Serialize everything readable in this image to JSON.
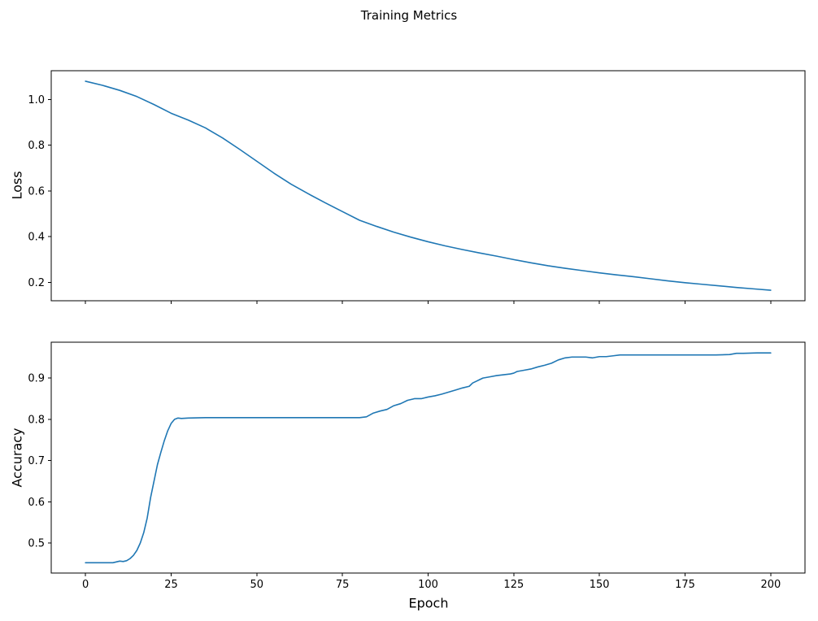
{
  "figure": {
    "title": "Training Metrics",
    "line_color": "#1f77b4",
    "background": "#ffffff",
    "text_color": "#000000"
  },
  "chart_data": [
    {
      "type": "line",
      "title": "",
      "xlabel": "",
      "ylabel": "Loss",
      "grid": false,
      "legend": "none",
      "xlim": [
        -10,
        210
      ],
      "ylim": [
        0.12,
        1.126
      ],
      "xticks": [
        0,
        25,
        50,
        75,
        100,
        125,
        150,
        175,
        200
      ],
      "xtick_labels": [],
      "yticks": [
        0.2,
        0.4,
        0.6,
        0.8,
        1.0
      ],
      "ytick_labels": [
        "0.2",
        "0.4",
        "0.6",
        "0.8",
        "1.0"
      ],
      "series": [
        {
          "name": "loss",
          "x": [
            0,
            5,
            10,
            15,
            20,
            25,
            30,
            35,
            40,
            45,
            50,
            55,
            60,
            65,
            70,
            75,
            80,
            85,
            90,
            95,
            100,
            105,
            110,
            115,
            120,
            125,
            130,
            135,
            140,
            145,
            150,
            155,
            160,
            165,
            170,
            175,
            180,
            185,
            190,
            195,
            200
          ],
          "y": [
            1.08,
            1.062,
            1.04,
            1.013,
            0.978,
            0.94,
            0.91,
            0.876,
            0.832,
            0.782,
            0.73,
            0.678,
            0.63,
            0.588,
            0.548,
            0.51,
            0.472,
            0.445,
            0.42,
            0.398,
            0.378,
            0.36,
            0.344,
            0.329,
            0.315,
            0.3,
            0.286,
            0.273,
            0.262,
            0.252,
            0.242,
            0.233,
            0.225,
            0.216,
            0.207,
            0.199,
            0.192,
            0.185,
            0.178,
            0.172,
            0.166
          ]
        }
      ]
    },
    {
      "type": "line",
      "title": "",
      "xlabel": "Epoch",
      "ylabel": "Accuracy",
      "grid": false,
      "legend": "none",
      "xlim": [
        -10,
        210
      ],
      "ylim": [
        0.427,
        0.987
      ],
      "xticks": [
        0,
        25,
        50,
        75,
        100,
        125,
        150,
        175,
        200
      ],
      "xtick_labels": [
        "0",
        "25",
        "50",
        "75",
        "100",
        "125",
        "150",
        "175",
        "200"
      ],
      "yticks": [
        0.5,
        0.6,
        0.7,
        0.8,
        0.9
      ],
      "ytick_labels": [
        "0.5",
        "0.6",
        "0.7",
        "0.8",
        "0.9"
      ],
      "series": [
        {
          "name": "accuracy",
          "x": [
            0,
            2,
            4,
            6,
            8,
            9,
            10,
            11,
            12,
            13,
            14,
            15,
            16,
            17,
            18,
            19,
            20,
            21,
            22,
            23,
            24,
            25,
            26,
            27,
            28,
            30,
            35,
            40,
            45,
            50,
            55,
            60,
            65,
            70,
            75,
            80,
            82,
            84,
            86,
            88,
            90,
            92,
            94,
            96,
            98,
            100,
            102,
            104,
            106,
            108,
            110,
            112,
            113,
            114,
            115,
            116,
            118,
            120,
            122,
            124,
            125,
            126,
            128,
            130,
            132,
            134,
            136,
            138,
            140,
            142,
            144,
            146,
            148,
            150,
            152,
            154,
            156,
            158,
            160,
            164,
            168,
            172,
            176,
            180,
            184,
            188,
            190,
            192,
            196,
            200
          ],
          "y": [
            0.452,
            0.452,
            0.452,
            0.452,
            0.452,
            0.454,
            0.456,
            0.455,
            0.457,
            0.462,
            0.47,
            0.482,
            0.5,
            0.525,
            0.56,
            0.61,
            0.65,
            0.69,
            0.72,
            0.748,
            0.772,
            0.79,
            0.8,
            0.803,
            0.802,
            0.803,
            0.804,
            0.804,
            0.804,
            0.804,
            0.804,
            0.804,
            0.804,
            0.804,
            0.804,
            0.804,
            0.806,
            0.815,
            0.82,
            0.824,
            0.833,
            0.838,
            0.846,
            0.85,
            0.85,
            0.854,
            0.857,
            0.861,
            0.866,
            0.871,
            0.876,
            0.88,
            0.888,
            0.892,
            0.896,
            0.9,
            0.903,
            0.906,
            0.908,
            0.91,
            0.912,
            0.916,
            0.919,
            0.922,
            0.927,
            0.931,
            0.936,
            0.944,
            0.949,
            0.951,
            0.951,
            0.951,
            0.949,
            0.952,
            0.952,
            0.954,
            0.956,
            0.956,
            0.956,
            0.956,
            0.956,
            0.956,
            0.956,
            0.956,
            0.956,
            0.957,
            0.96,
            0.96,
            0.961,
            0.961
          ]
        }
      ]
    }
  ]
}
